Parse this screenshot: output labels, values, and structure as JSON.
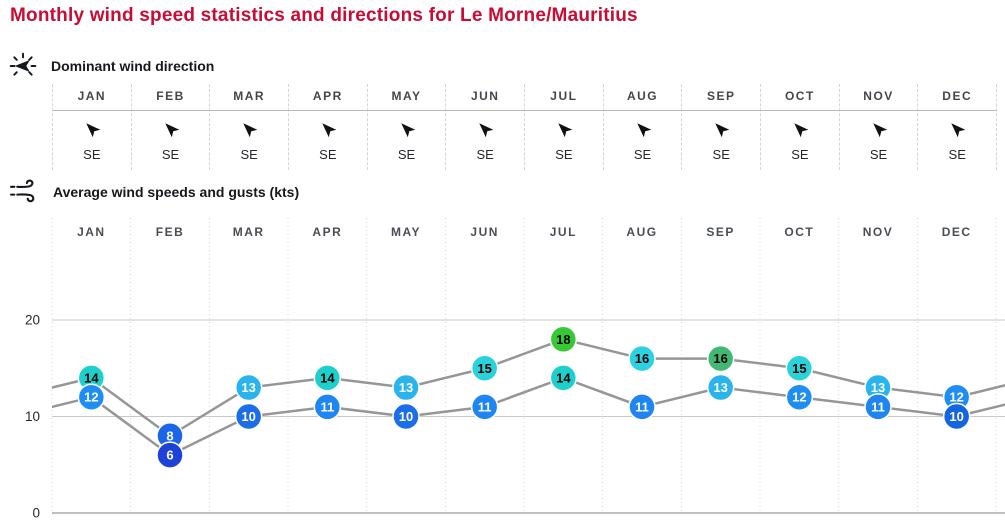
{
  "title": "Monthly wind speed statistics and directions for Le Morne/Mauritius",
  "colors": {
    "title_accent": "#c80c34",
    "series_line": "#969696",
    "grid_line": "#c8c8c8",
    "axis_line": "#aaaaaa",
    "column_separator": "#d4d4d4"
  },
  "direction_section": {
    "heading": "Dominant wind direction",
    "icon": "wind-vane-icon",
    "arrow_icon": "wind-direction-arrow-icon",
    "months": [
      "JAN",
      "FEB",
      "MAR",
      "APR",
      "MAY",
      "JUN",
      "JUL",
      "AUG",
      "SEP",
      "OCT",
      "NOV",
      "DEC"
    ],
    "directions": [
      "SE",
      "SE",
      "SE",
      "SE",
      "SE",
      "SE",
      "SE",
      "SE",
      "SE",
      "SE",
      "SE",
      "SE"
    ]
  },
  "speeds_section": {
    "heading": "Average wind speeds and gusts (kts)",
    "icon": "wind-gust-icon"
  },
  "chart_data": {
    "type": "line",
    "title": "Average wind speeds and gusts (kts)",
    "categories": [
      "JAN",
      "FEB",
      "MAR",
      "APR",
      "MAY",
      "JUN",
      "JUL",
      "AUG",
      "SEP",
      "OCT",
      "NOV",
      "DEC"
    ],
    "series": [
      {
        "name": "wind gusts (kts)",
        "values": [
          14,
          8,
          13,
          14,
          13,
          15,
          18,
          16,
          16,
          15,
          13,
          12
        ],
        "marker_colors": [
          "#1ed0cb",
          "#1b66e8",
          "#2ab4ee",
          "#1ed0cb",
          "#2ab4ee",
          "#2ad2da",
          "#36c936",
          "#2dd2e2",
          "#41b873",
          "#2ad2da",
          "#2ab4ee",
          "#1f8ef4"
        ],
        "label_colors": [
          "#000000",
          "#ffffff",
          "#ffffff",
          "#000000",
          "#ffffff",
          "#000000",
          "#000000",
          "#000000",
          "#000000",
          "#000000",
          "#ffffff",
          "#ffffff"
        ]
      },
      {
        "name": "average wind speed (kts)",
        "values": [
          12,
          6,
          10,
          11,
          10,
          11,
          14,
          11,
          13,
          12,
          11,
          10
        ],
        "marker_colors": [
          "#1f8ef4",
          "#1e42d8",
          "#1b6de8",
          "#1f85f2",
          "#1b6de8",
          "#1f85f2",
          "#1ed0cb",
          "#1f85f2",
          "#2ab4ee",
          "#1f8ef4",
          "#1f85f2",
          "#1565e2"
        ],
        "label_colors": [
          "#ffffff",
          "#ffffff",
          "#ffffff",
          "#ffffff",
          "#ffffff",
          "#ffffff",
          "#000000",
          "#ffffff",
          "#ffffff",
          "#ffffff",
          "#ffffff",
          "#ffffff"
        ]
      }
    ],
    "xlabel": "",
    "ylabel": "",
    "yticks": [
      0,
      10,
      20
    ],
    "ylim": [
      0,
      29
    ],
    "grid": "horizontal solid lines at 10 and 20, dashed vertical month separators",
    "legend": "none",
    "note": "lines continue past both chart edges (wrap from DEC to JAN)"
  }
}
